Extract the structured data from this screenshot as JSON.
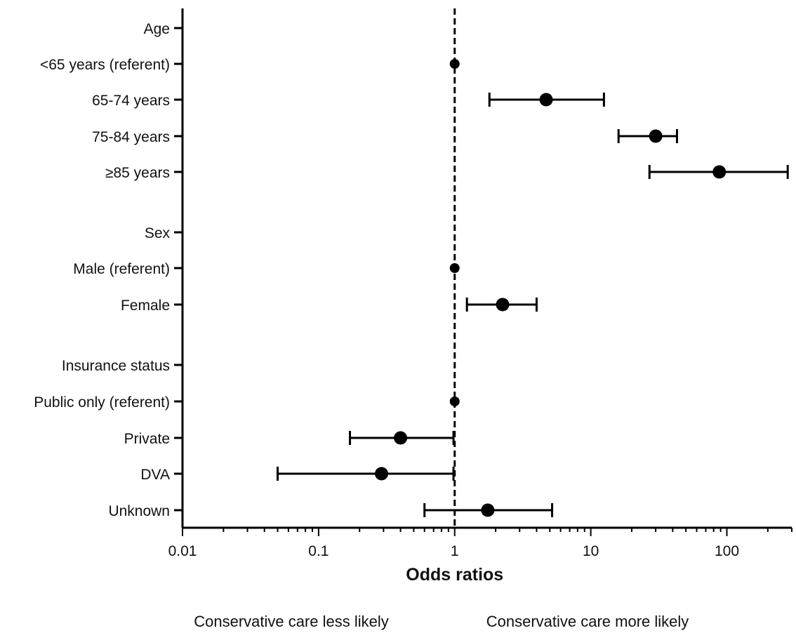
{
  "chart_data": {
    "type": "scatter",
    "subtype": "forest-plot",
    "orientation": "horizontal",
    "xscale": "log",
    "xlim": [
      0.01,
      300
    ],
    "xticks": [
      0.01,
      0.1,
      1,
      10,
      100
    ],
    "xtick_labels": [
      "0.01",
      "0.1",
      "1",
      "10",
      "100"
    ],
    "xlabel": "Odds ratios",
    "reference_line": {
      "x": 1,
      "style": "dashed"
    },
    "grid": false,
    "rows": [
      {
        "label": "Age",
        "estimate": null,
        "ci_low": null,
        "ci_high": null
      },
      {
        "label": "<65 years (referent)",
        "estimate": 1,
        "ci_low": null,
        "ci_high": null,
        "referent": true
      },
      {
        "label": "65-74 years",
        "estimate": 4.7,
        "ci_low": 1.8,
        "ci_high": 12.5
      },
      {
        "label": "75-84 years",
        "estimate": 30,
        "ci_low": 16,
        "ci_high": 43
      },
      {
        "label": "≥85 years",
        "estimate": 88,
        "ci_low": 27,
        "ci_high": 280
      },
      {
        "label": "Sex",
        "estimate": null,
        "ci_low": null,
        "ci_high": null
      },
      {
        "label": "Male (referent)",
        "estimate": 1,
        "ci_low": null,
        "ci_high": null,
        "referent": true
      },
      {
        "label": "Female",
        "estimate": 2.25,
        "ci_low": 1.23,
        "ci_high": 4.0
      },
      {
        "label": "Insurance status",
        "estimate": null,
        "ci_low": null,
        "ci_high": null
      },
      {
        "label": "Public only (referent)",
        "estimate": 1,
        "ci_low": null,
        "ci_high": null,
        "referent": true
      },
      {
        "label": "Private",
        "estimate": 0.4,
        "ci_low": 0.17,
        "ci_high": 0.98
      },
      {
        "label": "DVA",
        "estimate": 0.29,
        "ci_low": 0.05,
        "ci_high": 0.98
      },
      {
        "label": "Unknown",
        "estimate": 1.75,
        "ci_low": 0.6,
        "ci_high": 5.2
      }
    ],
    "annotations": {
      "left": "Conservative care less likely",
      "right": "Conservative care more likely"
    },
    "colors": {
      "marks": "#000000",
      "text": "#111111"
    }
  }
}
